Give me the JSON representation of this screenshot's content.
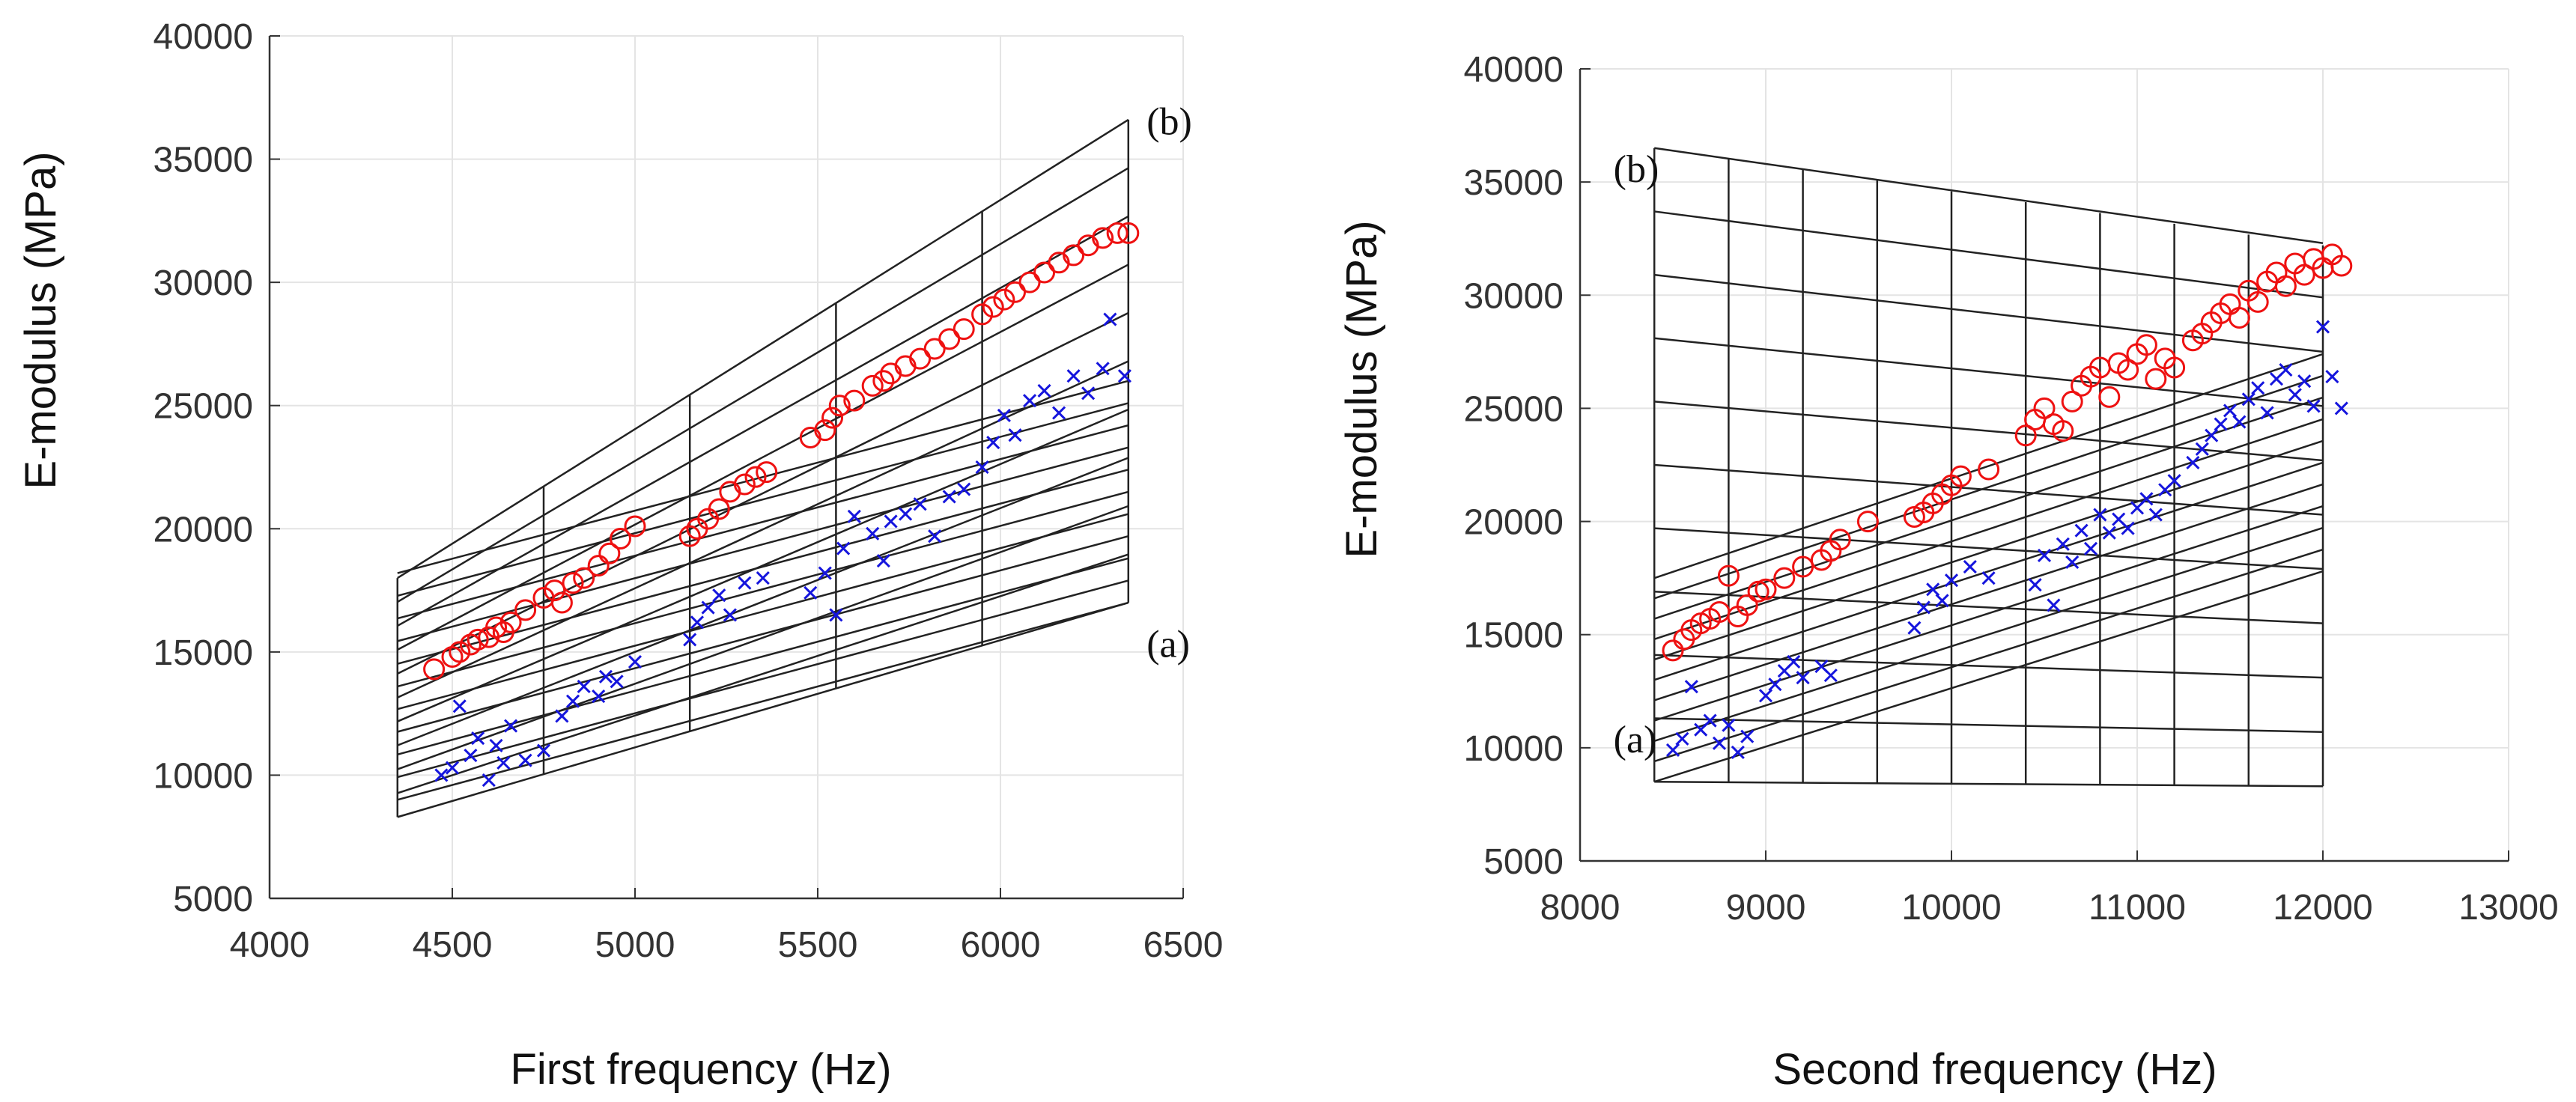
{
  "chart_data": [
    {
      "type": "scatter",
      "xlabel": "First frequency  (Hz)",
      "ylabel": "E-modulus  (MPa)",
      "xlim": [
        4000,
        6500
      ],
      "ylim": [
        5000,
        40000
      ],
      "xticks": [
        "4000",
        "4500",
        "5000",
        "5500",
        "6000",
        "6500"
      ],
      "yticks": [
        "5000",
        "10000",
        "15000",
        "20000",
        "25000",
        "30000",
        "35000",
        "40000"
      ],
      "grid": true,
      "annotations": [
        {
          "text": "(b)",
          "x": 6400,
          "y": 36000
        },
        {
          "text": "(a)",
          "x": 6400,
          "y": 14800
        }
      ],
      "series": [
        {
          "name": "red circles",
          "marker": "o",
          "color": "#ee1111",
          "points": [
            [
              4450,
              14300
            ],
            [
              4500,
              14800
            ],
            [
              4520,
              15000
            ],
            [
              4550,
              15300
            ],
            [
              4570,
              15500
            ],
            [
              4600,
              15600
            ],
            [
              4620,
              16000
            ],
            [
              4640,
              15800
            ],
            [
              4660,
              16200
            ],
            [
              4700,
              16700
            ],
            [
              4750,
              17200
            ],
            [
              4780,
              17500
            ],
            [
              4800,
              17000
            ],
            [
              4830,
              17800
            ],
            [
              4860,
              18000
            ],
            [
              4900,
              18500
            ],
            [
              4930,
              19000
            ],
            [
              4960,
              19600
            ],
            [
              5000,
              20100
            ],
            [
              5150,
              19700
            ],
            [
              5170,
              20000
            ],
            [
              5200,
              20400
            ],
            [
              5230,
              20800
            ],
            [
              5260,
              21500
            ],
            [
              5300,
              21800
            ],
            [
              5330,
              22100
            ],
            [
              5360,
              22300
            ],
            [
              5480,
              23700
            ],
            [
              5520,
              24000
            ],
            [
              5540,
              24500
            ],
            [
              5560,
              25000
            ],
            [
              5600,
              25200
            ],
            [
              5650,
              25800
            ],
            [
              5680,
              26000
            ],
            [
              5700,
              26300
            ],
            [
              5740,
              26600
            ],
            [
              5780,
              26900
            ],
            [
              5820,
              27300
            ],
            [
              5860,
              27700
            ],
            [
              5900,
              28100
            ],
            [
              5950,
              28700
            ],
            [
              5980,
              29000
            ],
            [
              6010,
              29300
            ],
            [
              6040,
              29600
            ],
            [
              6080,
              30000
            ],
            [
              6120,
              30400
            ],
            [
              6160,
              30800
            ],
            [
              6200,
              31100
            ],
            [
              6240,
              31500
            ],
            [
              6280,
              31800
            ],
            [
              6320,
              32000
            ],
            [
              6350,
              32000
            ]
          ]
        },
        {
          "name": "blue crosses",
          "marker": "x",
          "color": "#1515dd",
          "points": [
            [
              4470,
              10000
            ],
            [
              4500,
              10300
            ],
            [
              4520,
              12800
            ],
            [
              4550,
              10800
            ],
            [
              4570,
              11500
            ],
            [
              4600,
              9800
            ],
            [
              4620,
              11200
            ],
            [
              4640,
              10500
            ],
            [
              4660,
              12000
            ],
            [
              4700,
              10600
            ],
            [
              4750,
              11000
            ],
            [
              4800,
              12400
            ],
            [
              4830,
              13000
            ],
            [
              4860,
              13600
            ],
            [
              4900,
              13200
            ],
            [
              4920,
              14000
            ],
            [
              4950,
              13800
            ],
            [
              5000,
              14600
            ],
            [
              5150,
              15500
            ],
            [
              5170,
              16200
            ],
            [
              5200,
              16800
            ],
            [
              5230,
              17300
            ],
            [
              5260,
              16500
            ],
            [
              5300,
              17800
            ],
            [
              5350,
              18000
            ],
            [
              5480,
              17400
            ],
            [
              5520,
              18200
            ],
            [
              5550,
              16500
            ],
            [
              5570,
              19200
            ],
            [
              5600,
              20500
            ],
            [
              5650,
              19800
            ],
            [
              5680,
              18700
            ],
            [
              5700,
              20300
            ],
            [
              5740,
              20600
            ],
            [
              5780,
              21000
            ],
            [
              5820,
              19700
            ],
            [
              5860,
              21300
            ],
            [
              5900,
              21600
            ],
            [
              5950,
              22500
            ],
            [
              5980,
              23500
            ],
            [
              6010,
              24600
            ],
            [
              6040,
              23800
            ],
            [
              6080,
              25200
            ],
            [
              6120,
              25600
            ],
            [
              6160,
              24700
            ],
            [
              6200,
              26200
            ],
            [
              6240,
              25500
            ],
            [
              6280,
              26500
            ],
            [
              6300,
              28500
            ],
            [
              6340,
              26200
            ]
          ]
        }
      ]
    },
    {
      "type": "scatter",
      "xlabel": "Second frequency  (Hz)",
      "ylabel": "E-modulus  (MPa)",
      "xlim": [
        8000,
        13000
      ],
      "ylim": [
        5000,
        40000
      ],
      "xticks": [
        "8000",
        "9000",
        "10000",
        "11000",
        "12000",
        "13000"
      ],
      "yticks": [
        "5000",
        "10000",
        "15000",
        "20000",
        "25000",
        "30000",
        "35000",
        "40000"
      ],
      "grid": true,
      "annotations": [
        {
          "text": "(b)",
          "x": 8180,
          "y": 35000
        },
        {
          "text": "(a)",
          "x": 8180,
          "y": 9800
        }
      ],
      "series": [
        {
          "name": "red circles",
          "marker": "o",
          "color": "#ee1111",
          "points": [
            [
              8500,
              14300
            ],
            [
              8560,
              14800
            ],
            [
              8600,
              15200
            ],
            [
              8650,
              15500
            ],
            [
              8700,
              15700
            ],
            [
              8750,
              16000
            ],
            [
              8800,
              17600
            ],
            [
              8850,
              15800
            ],
            [
              8900,
              16300
            ],
            [
              8960,
              16900
            ],
            [
              9000,
              17000
            ],
            [
              9100,
              17500
            ],
            [
              9200,
              18000
            ],
            [
              9300,
              18300
            ],
            [
              9350,
              18700
            ],
            [
              9400,
              19200
            ],
            [
              9550,
              20000
            ],
            [
              9800,
              20200
            ],
            [
              9850,
              20400
            ],
            [
              9900,
              20800
            ],
            [
              9950,
              21200
            ],
            [
              10000,
              21600
            ],
            [
              10050,
              22000
            ],
            [
              10200,
              22300
            ],
            [
              10400,
              23800
            ],
            [
              10450,
              24500
            ],
            [
              10500,
              25000
            ],
            [
              10550,
              24300
            ],
            [
              10600,
              24000
            ],
            [
              10650,
              25300
            ],
            [
              10700,
              26000
            ],
            [
              10750,
              26400
            ],
            [
              10800,
              26800
            ],
            [
              10850,
              25500
            ],
            [
              10900,
              27000
            ],
            [
              10950,
              26700
            ],
            [
              11000,
              27400
            ],
            [
              11050,
              27800
            ],
            [
              11100,
              26300
            ],
            [
              11150,
              27200
            ],
            [
              11200,
              26800
            ],
            [
              11300,
              28000
            ],
            [
              11350,
              28300
            ],
            [
              11400,
              28800
            ],
            [
              11450,
              29200
            ],
            [
              11500,
              29600
            ],
            [
              11550,
              29000
            ],
            [
              11600,
              30200
            ],
            [
              11650,
              29700
            ],
            [
              11700,
              30600
            ],
            [
              11750,
              31000
            ],
            [
              11800,
              30400
            ],
            [
              11850,
              31400
            ],
            [
              11900,
              30900
            ],
            [
              11950,
              31600
            ],
            [
              12000,
              31200
            ],
            [
              12050,
              31800
            ],
            [
              12100,
              31300
            ]
          ]
        },
        {
          "name": "blue crosses",
          "marker": "x",
          "color": "#1515dd",
          "points": [
            [
              8500,
              9900
            ],
            [
              8550,
              10400
            ],
            [
              8600,
              12700
            ],
            [
              8650,
              10800
            ],
            [
              8700,
              11200
            ],
            [
              8750,
              10200
            ],
            [
              8800,
              11000
            ],
            [
              8850,
              9800
            ],
            [
              8900,
              10500
            ],
            [
              9000,
              12300
            ],
            [
              9050,
              12800
            ],
            [
              9100,
              13400
            ],
            [
              9150,
              13800
            ],
            [
              9200,
              13100
            ],
            [
              9300,
              13600
            ],
            [
              9350,
              13200
            ],
            [
              9800,
              15300
            ],
            [
              9850,
              16200
            ],
            [
              9900,
              17000
            ],
            [
              9950,
              16500
            ],
            [
              10000,
              17400
            ],
            [
              10100,
              18000
            ],
            [
              10200,
              17500
            ],
            [
              10450,
              17200
            ],
            [
              10500,
              18500
            ],
            [
              10550,
              16300
            ],
            [
              10600,
              19000
            ],
            [
              10650,
              18200
            ],
            [
              10700,
              19600
            ],
            [
              10750,
              18800
            ],
            [
              10800,
              20300
            ],
            [
              10850,
              19500
            ],
            [
              10900,
              20100
            ],
            [
              10950,
              19700
            ],
            [
              11000,
              20600
            ],
            [
              11050,
              21000
            ],
            [
              11100,
              20300
            ],
            [
              11150,
              21400
            ],
            [
              11200,
              21800
            ],
            [
              11300,
              22600
            ],
            [
              11350,
              23200
            ],
            [
              11400,
              23800
            ],
            [
              11450,
              24300
            ],
            [
              11500,
              24900
            ],
            [
              11550,
              24400
            ],
            [
              11600,
              25400
            ],
            [
              11650,
              25900
            ],
            [
              11700,
              24800
            ],
            [
              11750,
              26300
            ],
            [
              11800,
              26700
            ],
            [
              11850,
              25600
            ],
            [
              11900,
              26200
            ],
            [
              11950,
              25100
            ],
            [
              12000,
              28600
            ],
            [
              12050,
              26400
            ],
            [
              12100,
              25000
            ]
          ]
        }
      ]
    }
  ]
}
